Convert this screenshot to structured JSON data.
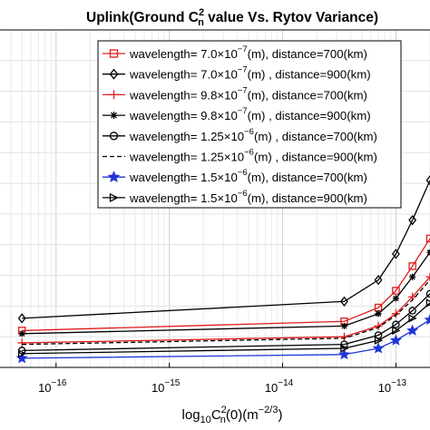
{
  "chart_data": {
    "type": "line",
    "title": {
      "text": "Uplink(Ground C",
      "sup": "2",
      "sub": "n",
      "rest": " value Vs. Rytov Variance)"
    },
    "xlabel": {
      "base": "log",
      "base_sub": "10",
      "var": "C",
      "var_sup": "2",
      "var_sub": "n",
      "arg": "(0)(m",
      "exp": "−2/3",
      "close": ")"
    },
    "ylabel": "",
    "x_scale": "log",
    "xlim": [
      3.2e-17,
      2e-13
    ],
    "ylim": [
      0,
      11
    ],
    "grid": true,
    "legend_position": "top-right",
    "x_ticks": [
      {
        "value": 1e-16,
        "base": "10",
        "exp": "−16"
      },
      {
        "value": 1e-15,
        "base": "10",
        "exp": "−15"
      },
      {
        "value": 1e-14,
        "base": "10",
        "exp": "−14"
      },
      {
        "value": 1e-13,
        "base": "10",
        "exp": "−13"
      }
    ],
    "x": [
      5e-17,
      3.5e-14,
      7e-14,
      1e-13,
      1.4e-13,
      2e-13
    ],
    "series": [
      {
        "name": "wavelength= 7.0×10^-7(m), distance=700(km)",
        "label": {
          "pre": "wavelength= 7.0×10",
          "exp": "−7",
          "post": "(m), distance=700(km)"
        },
        "color": "#e01b1b",
        "marker": "square",
        "dash": "solid",
        "values": [
          1.2,
          1.5,
          1.95,
          2.5,
          3.3,
          4.2
        ]
      },
      {
        "name": "wavelength= 7.0×10^-7(m) , distance=900(km)",
        "label": {
          "pre": "wavelength= 7.0×10",
          "exp": "−7",
          "post": "(m) , distance=900(km)"
        },
        "color": "#000000",
        "marker": "diamond",
        "dash": "solid",
        "values": [
          1.6,
          2.15,
          2.85,
          3.7,
          4.8,
          6.1
        ]
      },
      {
        "name": "wavelength= 9.8×10^-7(m), distance=700(km)",
        "label": {
          "pre": "wavelength= 9.8×10",
          "exp": "−7",
          "post": "(m), distance=700(km)"
        },
        "color": "#e01b1b",
        "marker": "plus",
        "dash": "solid",
        "values": [
          0.8,
          1.0,
          1.35,
          1.75,
          2.3,
          2.95
        ]
      },
      {
        "name": "wavelength= 9.8×10^-7(m)  , distance=900(km)",
        "label": {
          "pre": "wavelength= 9.8×10",
          "exp": "−7",
          "post": "(m)  , distance=900(km)"
        },
        "color": "#000000",
        "marker": "star",
        "dash": "solid",
        "values": [
          1.1,
          1.35,
          1.75,
          2.25,
          2.95,
          3.75
        ]
      },
      {
        "name": "wavelength= 1.25×10^-6(m) , distance=700(km)",
        "label": {
          "pre": "wavelength= 1.25×10",
          "exp": "−6",
          "post": "(m) , distance=700(km)"
        },
        "color": "#000000",
        "marker": "circle",
        "dash": "solid",
        "values": [
          0.55,
          0.75,
          1.05,
          1.4,
          1.85,
          2.4
        ]
      },
      {
        "name": "wavelength= 1.25×10^-6(m)      , distance=900(km)",
        "label": {
          "pre": "wavelength= 1.25×10",
          "exp": "−6",
          "post": "(m)      , distance=900(km)"
        },
        "color": "#000000",
        "marker": "none",
        "dash": "dashed",
        "values": [
          0.75,
          0.95,
          1.3,
          1.7,
          2.2,
          2.85
        ]
      },
      {
        "name": "wavelength= 1.5×10^-6(m), distance=700(km)",
        "label": {
          "pre": "wavelength= 1.5×10",
          "exp": "−6",
          "post": "(m), distance=700(km)"
        },
        "color": "#1f35d6",
        "marker": "star5",
        "dash": "solid",
        "values": [
          0.3,
          0.42,
          0.62,
          0.88,
          1.2,
          1.55
        ]
      },
      {
        "name": "wavelength= 1.5×10^-6(m), distance=900(km)",
        "label": {
          "pre": "wavelength= 1.5×10",
          "exp": "−6",
          "post": "(m), distance=900(km)"
        },
        "color": "#000000",
        "marker": "triangle-right",
        "dash": "solid",
        "values": [
          0.45,
          0.62,
          0.88,
          1.2,
          1.6,
          2.1
        ]
      }
    ]
  }
}
